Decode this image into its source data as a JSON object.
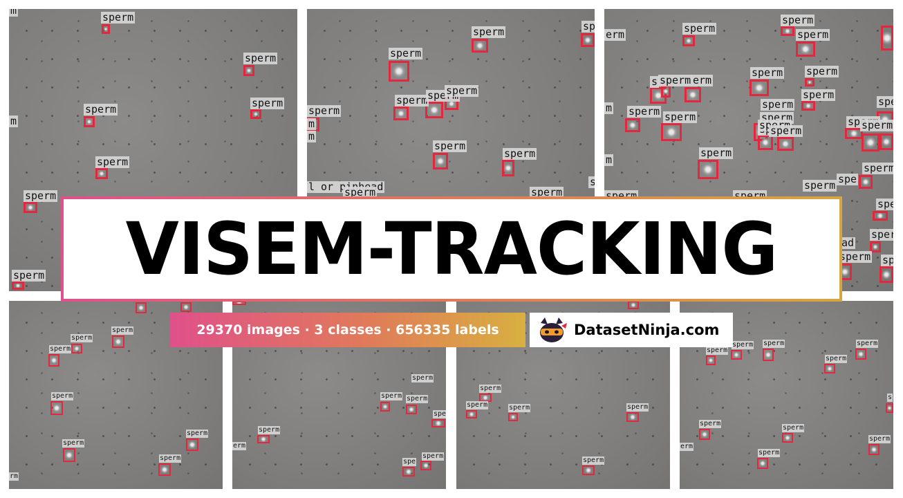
{
  "title": "VISEM-TRACKING",
  "stats": "29370 images · 3 classes · 656335 labels",
  "brand": "DatasetNinja.com",
  "icon": "ninja-cat-icon",
  "label_texts": {
    "sperm": "sperm",
    "pinhead": "l or pinhead",
    "frag_er": "er",
    "frag_rm": "rm",
    "frag_m": "m",
    "frag_erm": "erm",
    "frag_s": "s",
    "frag_spe": "spe",
    "frag_ad": "ad"
  },
  "colors": {
    "bbox": "#e0283e",
    "gradient_start": "#e0508a",
    "gradient_mid": "#e07a5a",
    "gradient_end": "#d8a640"
  }
}
